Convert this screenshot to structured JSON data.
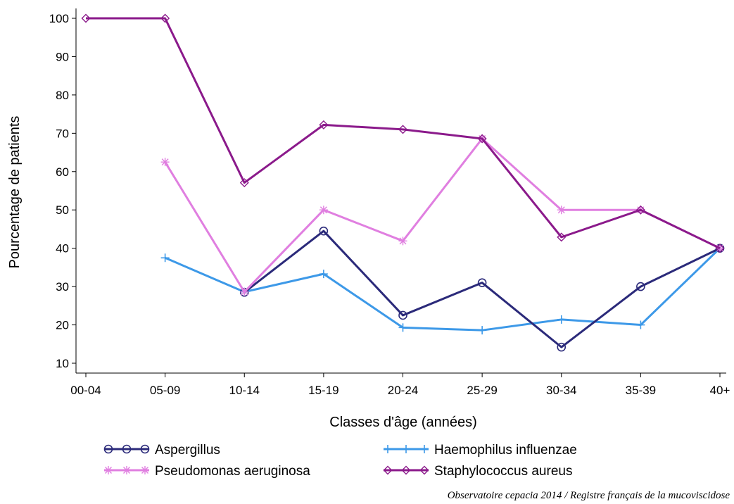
{
  "chart_data": {
    "type": "line",
    "categories": [
      "00-04",
      "05-09",
      "10-14",
      "15-19",
      "20-24",
      "25-29",
      "30-34",
      "35-39",
      "40+"
    ],
    "xlabel": "Classes d'âge (années)",
    "ylabel": "Pourcentage de patients",
    "ylim": [
      10,
      100
    ],
    "yticks": [
      10,
      20,
      30,
      40,
      50,
      60,
      70,
      80,
      90,
      100
    ],
    "grid": false,
    "legend_position": "bottom",
    "series": [
      {
        "name": "Aspergillus",
        "color": "#2b2a7a",
        "marker": "circle",
        "values": [
          null,
          null,
          28.5,
          44.5,
          22.5,
          31,
          14.2,
          30,
          40
        ]
      },
      {
        "name": "Haemophilus influenzae",
        "color": "#3d99e8",
        "marker": "plus",
        "values": [
          null,
          37.5,
          28.6,
          33.3,
          19.3,
          18.6,
          21.4,
          20,
          40
        ]
      },
      {
        "name": "Pseudomonas aeruginosa",
        "color": "#e07fe0",
        "marker": "star",
        "values": [
          null,
          62.5,
          28.6,
          50,
          41.9,
          68.6,
          50,
          50,
          40
        ]
      },
      {
        "name": "Staphylococcus aureus",
        "color": "#8b1a8b",
        "marker": "diamond",
        "values": [
          100,
          100,
          57.1,
          72.2,
          71,
          68.6,
          42.9,
          50,
          40
        ]
      }
    ]
  },
  "source_note": "Observatoire cepacia 2014 / Registre français de la mucoviscidose"
}
